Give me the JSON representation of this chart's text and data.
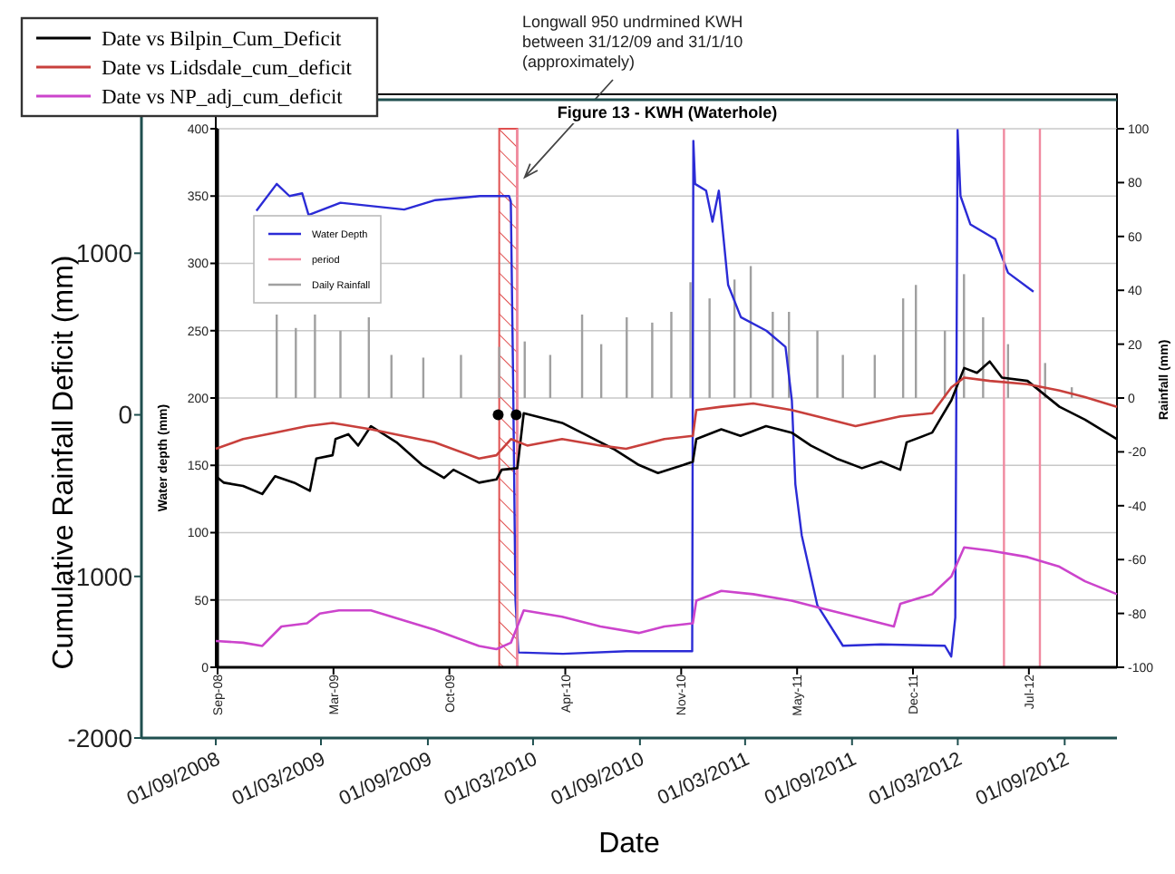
{
  "chart_data": [
    {
      "type": "line",
      "xlabel": "Date",
      "ylabel": "Cumulative Rainfall Deficit (mm)",
      "xlim": [
        "2008-04-26",
        "2012-11-30"
      ],
      "xticks": [
        {
          "value": "2008-09-01",
          "label": "01/09/2008"
        },
        {
          "value": "2009-03-01",
          "label": "01/03/2009"
        },
        {
          "value": "2009-09-01",
          "label": "01/09/2009"
        },
        {
          "value": "2010-03-01",
          "label": "01/03/2010"
        },
        {
          "value": "2010-09-01",
          "label": "01/09/2010"
        },
        {
          "value": "2011-03-01",
          "label": "01/03/2011"
        },
        {
          "value": "2011-09-01",
          "label": "01/09/2011"
        },
        {
          "value": "2012-03-01",
          "label": "01/03/2012"
        },
        {
          "value": "2012-09-01",
          "label": "01/09/2012"
        }
      ],
      "ylim": [
        -2000,
        1950
      ],
      "yticks": [
        -2000,
        -1000,
        0,
        1000
      ],
      "legend": "top left",
      "series": [
        {
          "name": "Date vs Bilpin_Cum_Deficit",
          "color": "#000000",
          "x": [
            "2008-09-01",
            "2008-09-15",
            "2008-10-18",
            "2008-11-20",
            "2008-12-12",
            "2009-01-14",
            "2009-02-10",
            "2009-02-21",
            "2009-03-21",
            "2009-03-26",
            "2009-04-17",
            "2009-05-04",
            "2009-05-26",
            "2009-07-09",
            "2009-08-22",
            "2009-09-29",
            "2009-10-15",
            "2009-11-28",
            "2009-12-28",
            "2010-01-06",
            "2010-02-02",
            "2010-02-13",
            "2010-04-20",
            "2010-06-03",
            "2010-07-17",
            "2010-08-30",
            "2010-10-02",
            "2010-11-15",
            "2010-12-01",
            "2010-12-07",
            "2011-01-19",
            "2011-02-21",
            "2011-04-06",
            "2011-05-20",
            "2011-06-22",
            "2011-08-05",
            "2011-09-18",
            "2011-10-21",
            "2011-11-23",
            "2011-12-04",
            "2012-01-17",
            "2012-02-19",
            "2012-03-12",
            "2012-04-03",
            "2012-04-25",
            "2012-05-16",
            "2012-06-29",
            "2012-08-23",
            "2012-10-06",
            "2012-11-30"
          ],
          "values": [
            -380,
            -420,
            -440,
            -490,
            -380,
            -420,
            -470,
            -270,
            -250,
            -150,
            -120,
            -190,
            -70,
            -170,
            -310,
            -390,
            -340,
            -420,
            -400,
            -340,
            -330,
            10,
            -50,
            -130,
            -210,
            -310,
            -360,
            -310,
            -290,
            -150,
            -90,
            -130,
            -70,
            -110,
            -190,
            -270,
            -330,
            -290,
            -340,
            -170,
            -110,
            90,
            290,
            260,
            330,
            230,
            210,
            50,
            -30,
            -150
          ]
        },
        {
          "name": "Date vs Lidsdale_cum_deficit",
          "color": "#c8403c",
          "x": [
            "2008-09-01",
            "2008-10-18",
            "2008-12-12",
            "2009-02-05",
            "2009-03-21",
            "2009-05-26",
            "2009-07-20",
            "2009-09-12",
            "2009-11-28",
            "2009-12-28",
            "2010-01-22",
            "2010-02-19",
            "2010-04-20",
            "2010-06-25",
            "2010-08-08",
            "2010-10-13",
            "2010-12-01",
            "2010-12-07",
            "2011-01-19",
            "2011-03-15",
            "2011-05-20",
            "2011-07-03",
            "2011-09-07",
            "2011-11-23",
            "2012-01-17",
            "2012-02-19",
            "2012-03-12",
            "2012-04-25",
            "2012-06-29",
            "2012-08-23",
            "2012-10-06",
            "2012-11-30"
          ],
          "values": [
            -210,
            -150,
            -110,
            -70,
            -50,
            -90,
            -130,
            -170,
            -270,
            -250,
            -150,
            -190,
            -150,
            -190,
            -210,
            -150,
            -130,
            30,
            50,
            70,
            30,
            -10,
            -70,
            -10,
            10,
            170,
            230,
            210,
            190,
            150,
            110,
            50
          ]
        },
        {
          "name": "Date vs NP_adj_cum_deficit",
          "color": "#cc44cc",
          "x": [
            "2008-09-01",
            "2008-10-18",
            "2008-11-20",
            "2008-12-23",
            "2009-02-05",
            "2009-02-27",
            "2009-04-01",
            "2009-05-26",
            "2009-07-20",
            "2009-09-12",
            "2009-11-28",
            "2009-12-28",
            "2010-01-22",
            "2010-02-13",
            "2010-04-20",
            "2010-06-25",
            "2010-08-30",
            "2010-10-13",
            "2010-12-01",
            "2010-12-07",
            "2011-01-19",
            "2011-03-15",
            "2011-05-20",
            "2011-07-03",
            "2011-09-07",
            "2011-11-12",
            "2011-11-23",
            "2012-01-17",
            "2012-02-19",
            "2012-03-12",
            "2012-04-25",
            "2012-06-29",
            "2012-08-23",
            "2012-10-06",
            "2012-11-30"
          ],
          "values": [
            -1400,
            -1410,
            -1430,
            -1310,
            -1290,
            -1230,
            -1210,
            -1210,
            -1270,
            -1330,
            -1430,
            -1450,
            -1410,
            -1210,
            -1250,
            -1310,
            -1350,
            -1310,
            -1290,
            -1150,
            -1090,
            -1110,
            -1150,
            -1190,
            -1250,
            -1310,
            -1170,
            -1110,
            -1000,
            -820,
            -840,
            -880,
            -940,
            -1030,
            -1110
          ]
        },
        {
          "type": "scatter",
          "color": "#000000",
          "marker": "circle",
          "x": [
            "2009-12-31",
            "2010-01-31"
          ],
          "values": [
            0,
            0
          ]
        }
      ]
    },
    {
      "type": "line",
      "title": "Figure 13 - KWH (Waterhole)",
      "ylabel": "Water depth (mm)",
      "y2label": "Rainfall (mm)",
      "xlim": [
        "2008-09-01",
        "2012-12-01"
      ],
      "xticks": [
        {
          "value": "2008-09-01",
          "label": "Sep-08"
        },
        {
          "value": "2009-03-20",
          "label": "Mar-09"
        },
        {
          "value": "2009-10-06",
          "label": "Oct-09"
        },
        {
          "value": "2010-04-24",
          "label": "Apr-10"
        },
        {
          "value": "2010-11-10",
          "label": "Nov-10"
        },
        {
          "value": "2011-05-29",
          "label": "May-11"
        },
        {
          "value": "2011-12-15",
          "label": "Dec-11"
        },
        {
          "value": "2012-07-02",
          "label": "Jul-12"
        }
      ],
      "ylim": [
        0,
        400
      ],
      "yticks": [
        0,
        50,
        100,
        150,
        200,
        250,
        300,
        350,
        400
      ],
      "y2lim": [
        -100,
        100
      ],
      "y2ticks": [
        -100,
        -80,
        -60,
        -40,
        -20,
        0,
        20,
        40,
        60,
        80,
        100
      ],
      "grid": "y",
      "legend": "top left",
      "bands": [
        {
          "axis": "x",
          "from": "2009-12-31",
          "to": "2010-01-31",
          "color": "#e05050"
        }
      ],
      "annotations": [
        {
          "text": "Longwall 950 undrmined KWH\nbetween 31/12/09 and 31/1/10\n(approximately)",
          "x": "2010-02-13",
          "y": 364
        }
      ],
      "series": [
        {
          "name": "Water Depth",
          "color": "#2b2bd6",
          "x": [
            "2008-11-07",
            "2008-12-12",
            "2009-01-03",
            "2009-01-25",
            "2009-02-05",
            "2009-04-01",
            "2009-07-20",
            "2009-09-12",
            "2009-11-28",
            "2010-01-17",
            "2010-01-20",
            "2010-01-24",
            "2010-01-28",
            "2010-02-02",
            "2010-04-20",
            "2010-08-08",
            "2010-11-29",
            "2010-12-01",
            "2010-12-04",
            "2010-12-23",
            "2011-01-03",
            "2011-01-14",
            "2011-01-30",
            "2011-02-21",
            "2011-04-06",
            "2011-05-09",
            "2011-05-20",
            "2011-05-26",
            "2011-06-06",
            "2011-07-03",
            "2011-08-16",
            "2011-10-21",
            "2012-02-08",
            "2012-02-19",
            "2012-02-26",
            "2012-03-01",
            "2012-03-06",
            "2012-03-23",
            "2012-05-05",
            "2012-05-27",
            "2012-07-10"
          ],
          "values": [
            339,
            359,
            350,
            352,
            336,
            345,
            340,
            347,
            350,
            350,
            346,
            213,
            50,
            11,
            10,
            12,
            12,
            391,
            359,
            354,
            331,
            354,
            284,
            260,
            250,
            238,
            198,
            136,
            98,
            46,
            16,
            17,
            16,
            8,
            37,
            399,
            350,
            329,
            318,
            293,
            279
          ]
        },
        {
          "name": "period",
          "color": "#f08aa0",
          "x": [
            "2010-01-31",
            "2010-01-31",
            null,
            "2012-05-20",
            "2012-05-20",
            null,
            "2012-07-21",
            "2012-07-21"
          ],
          "values": [
            0,
            400,
            null,
            0,
            400,
            null,
            0,
            400
          ]
        },
        {
          "name": "Daily Rainfall",
          "type": "bar",
          "axis": "y2",
          "color": "#a0a0a0",
          "x": [
            "2008-12-12",
            "2009-01-14",
            "2009-02-16",
            "2009-04-01",
            "2009-05-20",
            "2009-06-28",
            "2009-08-22",
            "2009-10-26",
            "2009-12-31",
            "2010-02-13",
            "2010-03-29",
            "2010-05-23",
            "2010-06-25",
            "2010-08-08",
            "2010-09-21",
            "2010-10-24",
            "2010-11-26",
            "2010-12-29",
            "2011-02-10",
            "2011-03-10",
            "2011-04-17",
            "2011-05-15",
            "2011-07-03",
            "2011-08-16",
            "2011-10-10",
            "2011-11-28",
            "2011-12-20",
            "2012-02-08",
            "2012-03-12",
            "2012-04-14",
            "2012-05-27",
            "2012-07-30",
            "2012-09-14"
          ],
          "values": [
            31,
            26,
            31,
            25,
            30,
            16,
            15,
            16,
            19,
            21,
            16,
            31,
            20,
            30,
            28,
            32,
            43,
            37,
            44,
            49,
            32,
            32,
            25,
            16,
            16,
            37,
            42,
            25,
            46,
            30,
            20,
            13,
            4
          ]
        }
      ]
    }
  ]
}
